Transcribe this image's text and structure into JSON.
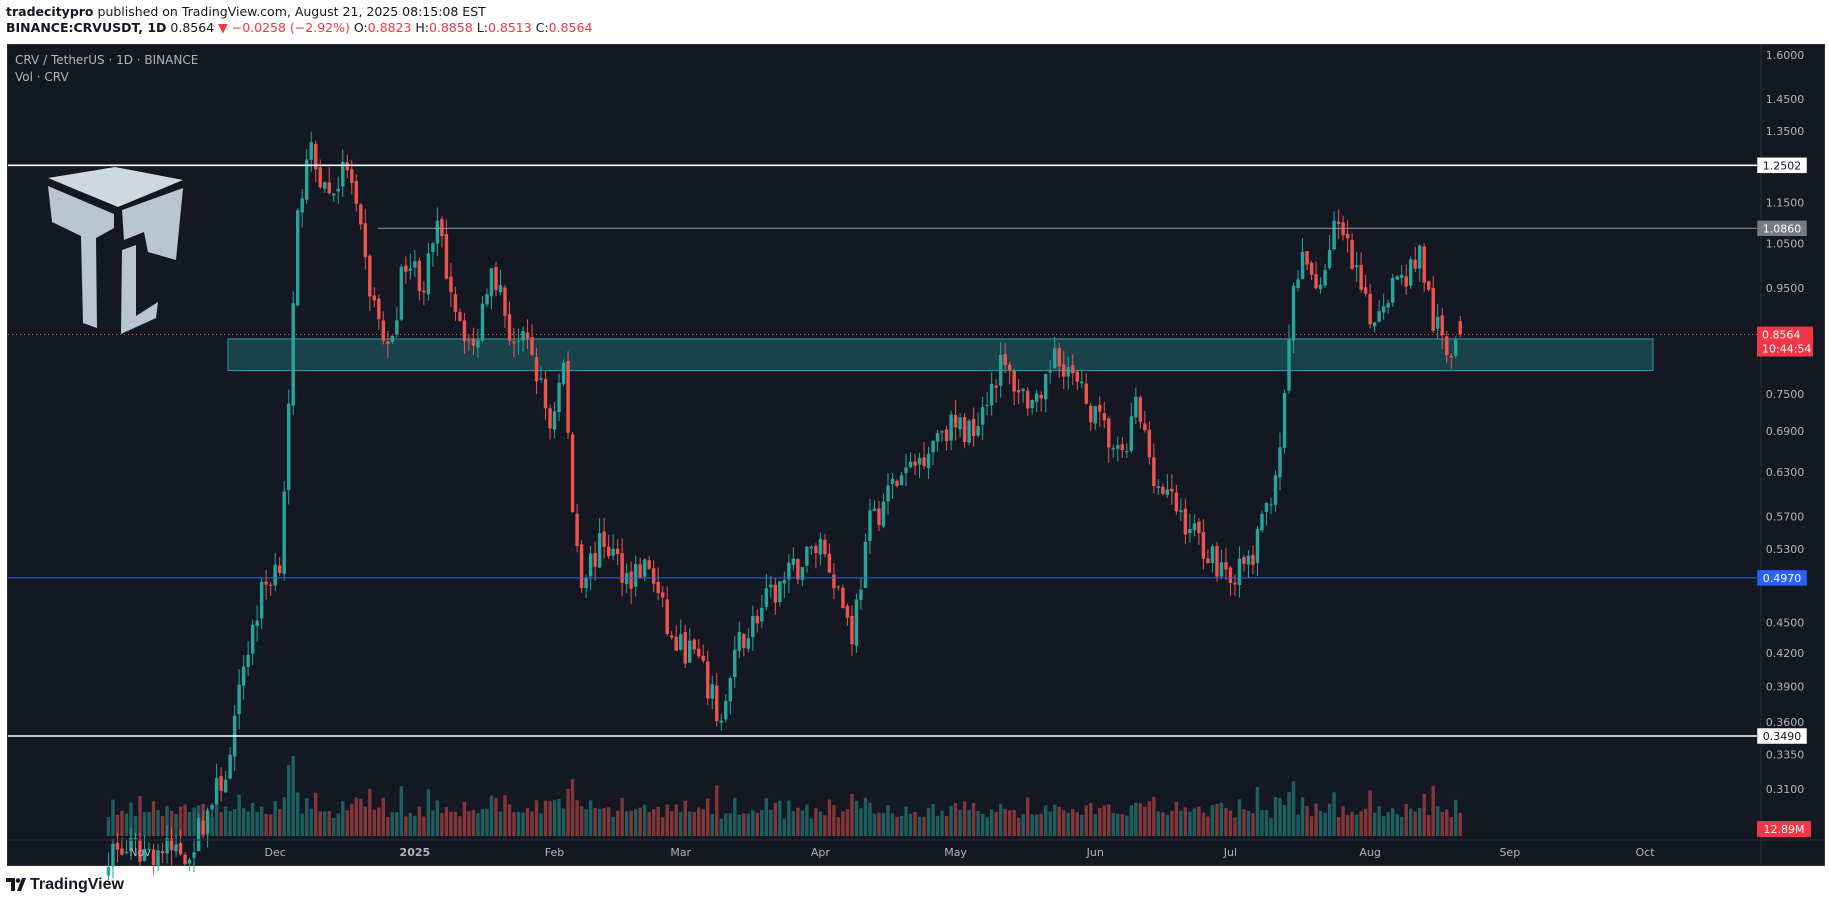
{
  "header": {
    "publisher": "tradecitypro",
    "published_text": "published on TradingView.com, August 21, 2025 08:15:08 EST",
    "symbol_line": "BINANCE:CRVUSDT, 1D",
    "last": "0.8564",
    "change": "▼ −0.0258 (−2.92%)",
    "open_label": "O:",
    "open": "0.8823",
    "high_label": "H:",
    "high": "0.8858",
    "low_label": "L:",
    "low": "0.8513",
    "close_label": "C:",
    "close": "0.8564"
  },
  "legend": {
    "title": "CRV / TetherUS · 1D · BINANCE",
    "volume": "Vol · CRV"
  },
  "footer": {
    "brand": "TradingView"
  },
  "colors": {
    "background": "#141823",
    "up": "#26a69a",
    "down": "#ef5350",
    "zone": "#1b4a52",
    "support_blue": "#2962ff"
  },
  "chart_data": {
    "type": "candlestick",
    "symbol": "CRV/USDT",
    "interval": "1D",
    "exchange": "BINANCE",
    "scale": "log",
    "ylim": [
      0.317,
      1.64
    ],
    "y_ticks": [
      "1.6000",
      "1.4500",
      "1.3500",
      "1.1500",
      "1.0500",
      "0.9500",
      "0.7500",
      "0.6900",
      "0.6300",
      "0.5700",
      "0.5300",
      "0.4500",
      "0.4200",
      "0.3900",
      "0.3600",
      "0.3350",
      "0.3100"
    ],
    "x_ticks": [
      "Nov",
      "Dec",
      "2025",
      "Feb",
      "Mar",
      "Apr",
      "May",
      "Jun",
      "Jul",
      "Aug",
      "Sep",
      "Oct"
    ],
    "horizontal_levels": [
      {
        "value": 1.2502,
        "label": "1.2502",
        "color": "#ffffff"
      },
      {
        "value": 1.086,
        "label": "1.0860",
        "color": "#9598a1"
      },
      {
        "value": 0.497,
        "label": "0.4970",
        "color": "#2962ff"
      },
      {
        "value": 0.349,
        "label": "0.3490",
        "color": "#ffffff"
      }
    ],
    "zone": {
      "top": 0.848,
      "bottom": 0.79
    },
    "last_price": {
      "value": 0.8564,
      "label": "0.8564",
      "countdown": "10:44:54"
    },
    "volume_last": "12.89M",
    "price_path": [
      {
        "date": "2024-10-25",
        "price": 0.27
      },
      {
        "date": "2024-11-12",
        "price": 0.27
      },
      {
        "date": "2024-11-21",
        "price": 0.33
      },
      {
        "date": "2024-11-24",
        "price": 0.41
      },
      {
        "date": "2024-11-28",
        "price": 0.48
      },
      {
        "date": "2024-12-02",
        "price": 0.52
      },
      {
        "date": "2024-12-04",
        "price": 0.72
      },
      {
        "date": "2024-12-06",
        "price": 1.1
      },
      {
        "date": "2024-12-08",
        "price": 1.3
      },
      {
        "date": "2024-12-13",
        "price": 1.17
      },
      {
        "date": "2024-12-17",
        "price": 1.25
      },
      {
        "date": "2024-12-22",
        "price": 0.95
      },
      {
        "date": "2024-12-26",
        "price": 0.82
      },
      {
        "date": "2024-12-30",
        "price": 1.02
      },
      {
        "date": "2025-01-03",
        "price": 0.96
      },
      {
        "date": "2025-01-06",
        "price": 1.08
      },
      {
        "date": "2025-01-10",
        "price": 0.92
      },
      {
        "date": "2025-01-14",
        "price": 0.82
      },
      {
        "date": "2025-01-18",
        "price": 1.02
      },
      {
        "date": "2025-01-22",
        "price": 0.86
      },
      {
        "date": "2025-01-27",
        "price": 0.82
      },
      {
        "date": "2025-01-31",
        "price": 0.7
      },
      {
        "date": "2025-02-03",
        "price": 0.8
      },
      {
        "date": "2025-02-05",
        "price": 0.58
      },
      {
        "date": "2025-02-07",
        "price": 0.5
      },
      {
        "date": "2025-02-12",
        "price": 0.54
      },
      {
        "date": "2025-02-17",
        "price": 0.5
      },
      {
        "date": "2025-02-22",
        "price": 0.51
      },
      {
        "date": "2025-02-27",
        "price": 0.43
      },
      {
        "date": "2025-03-04",
        "price": 0.42
      },
      {
        "date": "2025-03-10",
        "price": 0.36
      },
      {
        "date": "2025-03-14",
        "price": 0.43
      },
      {
        "date": "2025-03-20",
        "price": 0.47
      },
      {
        "date": "2025-03-27",
        "price": 0.51
      },
      {
        "date": "2025-04-01",
        "price": 0.54
      },
      {
        "date": "2025-04-04",
        "price": 0.5
      },
      {
        "date": "2025-04-08",
        "price": 0.44
      },
      {
        "date": "2025-04-12",
        "price": 0.56
      },
      {
        "date": "2025-04-17",
        "price": 0.61
      },
      {
        "date": "2025-04-22",
        "price": 0.64
      },
      {
        "date": "2025-04-28",
        "price": 0.7
      },
      {
        "date": "2025-05-04",
        "price": 0.69
      },
      {
        "date": "2025-05-11",
        "price": 0.8
      },
      {
        "date": "2025-05-16",
        "price": 0.75
      },
      {
        "date": "2025-05-20",
        "price": 0.72
      },
      {
        "date": "2025-05-23",
        "price": 0.84
      },
      {
        "date": "2025-05-28",
        "price": 0.76
      },
      {
        "date": "2025-06-03",
        "price": 0.69
      },
      {
        "date": "2025-06-07",
        "price": 0.64
      },
      {
        "date": "2025-06-10",
        "price": 0.73
      },
      {
        "date": "2025-06-15",
        "price": 0.61
      },
      {
        "date": "2025-06-19",
        "price": 0.58
      },
      {
        "date": "2025-06-23",
        "price": 0.55
      },
      {
        "date": "2025-06-27",
        "price": 0.52
      },
      {
        "date": "2025-07-02",
        "price": 0.5
      },
      {
        "date": "2025-07-06",
        "price": 0.52
      },
      {
        "date": "2025-07-09",
        "price": 0.58
      },
      {
        "date": "2025-07-11",
        "price": 0.63
      },
      {
        "date": "2025-07-13",
        "price": 0.73
      },
      {
        "date": "2025-07-15",
        "price": 0.95
      },
      {
        "date": "2025-07-17",
        "price": 1.0
      },
      {
        "date": "2025-07-21",
        "price": 0.96
      },
      {
        "date": "2025-07-24",
        "price": 1.1
      },
      {
        "date": "2025-07-27",
        "price": 1.03
      },
      {
        "date": "2025-08-01",
        "price": 0.88
      },
      {
        "date": "2025-08-05",
        "price": 0.95
      },
      {
        "date": "2025-08-09",
        "price": 0.98
      },
      {
        "date": "2025-08-12",
        "price": 1.03
      },
      {
        "date": "2025-08-15",
        "price": 0.88
      },
      {
        "date": "2025-08-18",
        "price": 0.83
      },
      {
        "date": "2025-08-21",
        "price": 0.8564
      }
    ]
  }
}
